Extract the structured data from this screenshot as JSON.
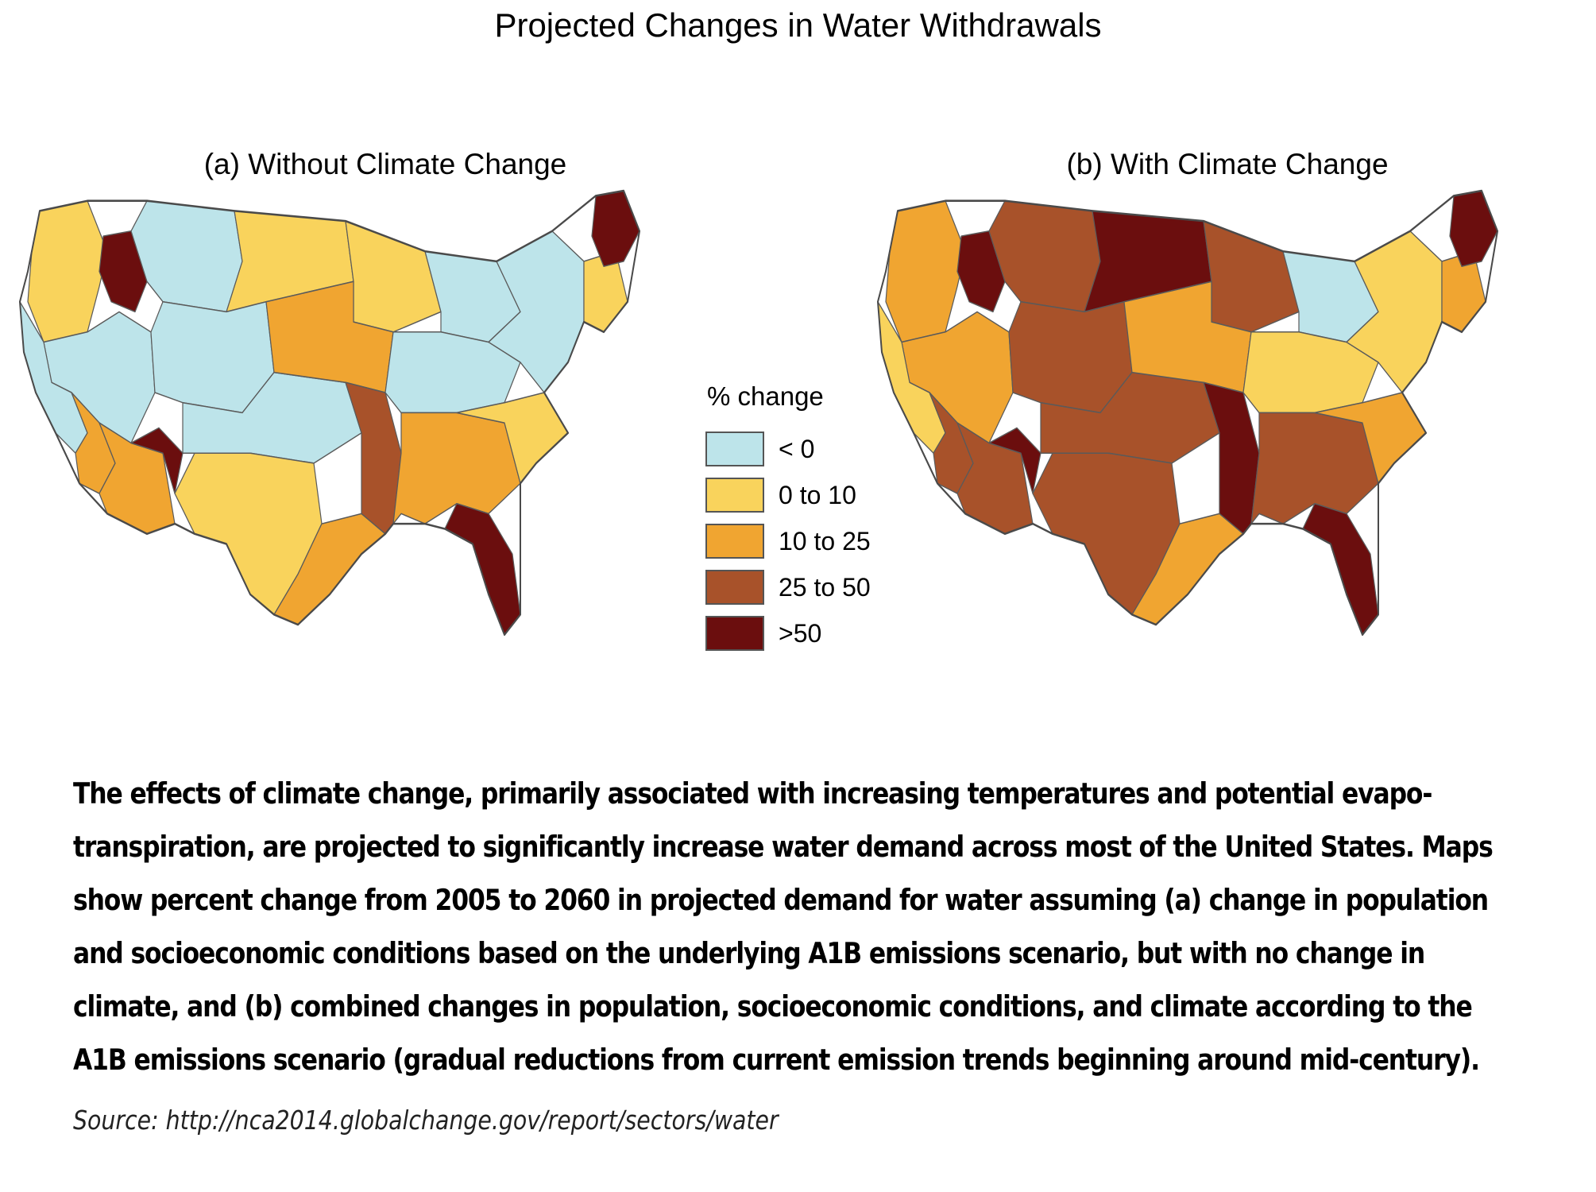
{
  "title": "Projected Changes in Water Withdrawals",
  "maps": [
    {
      "id": "a",
      "title": "(a) Without Climate Change"
    },
    {
      "id": "b",
      "title": "(b) With Climate Change"
    }
  ],
  "legend": {
    "title": "% change",
    "items": [
      {
        "label": "< 0",
        "color": "#bde4ea"
      },
      {
        "label": "0 to 10",
        "color": "#f9d35c"
      },
      {
        "label": "10 to 25",
        "color": "#f0a531"
      },
      {
        "label": "25 to 50",
        "color": "#a8522a"
      },
      {
        "label": ">50",
        "color": "#6b0e0e"
      }
    ]
  },
  "caption": "The effects of climate change, primarily associated with increasing temperatures and potential evapo-transpiration, are projected to significantly increase water demand across most of the United States. Maps show percent change from 2005 to 2060 in projected demand for water assuming (a) change in population and socioeconomic conditions based on the underlying A1B emissions scenario, but with no change in climate, and (b) combined changes in population, socioeconomic conditions, and climate according to the A1B emissions scenario (gradual reductions from current emission trends beginning around mid-century).",
  "caption_lines": [
    "The effects of climate change, primarily associated with increasing temperatures and potential evapo-",
    "transpiration, are projected to significantly increase water demand across most of the United States. Maps",
    "show percent change from 2005 to 2060 in projected demand for water assuming (a) change in population",
    "and socioeconomic conditions based on the underlying A1B emissions scenario, but with no change in",
    "climate, and (b) combined changes in population, socioeconomic conditions, and climate according to the",
    "A1B emissions scenario (gradual reductions from current emission trends beginning around mid-century)."
  ],
  "source": "Source: http://nca2014.globalchange.gov/report/sectors/water",
  "regions": {
    "a": {
      "northwest": 1,
      "idaho": 4,
      "great_basin": 0,
      "california": 0,
      "socal": 2,
      "southwest_az": 2,
      "four_corners": 4,
      "plains_north": 0,
      "dakotas": 1,
      "rockies": 0,
      "southern_plains": 0,
      "texas": 1,
      "gulf_tx": 2,
      "midwest_upper": 1,
      "midwest_central": 2,
      "lower_miss": 3,
      "great_lakes": 0,
      "ohio_valley": 0,
      "southeast": 2,
      "florida": 4,
      "appalachia": 1,
      "northeast": 0,
      "new_england": 1,
      "maine": 4
    },
    "b": {
      "northwest": 2,
      "idaho": 4,
      "great_basin": 2,
      "california": 1,
      "socal": 3,
      "southwest_az": 3,
      "four_corners": 4,
      "plains_north": 3,
      "dakotas": 4,
      "rockies": 3,
      "southern_plains": 3,
      "texas": 3,
      "gulf_tx": 2,
      "midwest_upper": 3,
      "midwest_central": 2,
      "lower_miss": 4,
      "great_lakes": 0,
      "ohio_valley": 1,
      "southeast": 3,
      "florida": 4,
      "appalachia": 2,
      "northeast": 1,
      "new_england": 2,
      "maine": 4
    }
  }
}
